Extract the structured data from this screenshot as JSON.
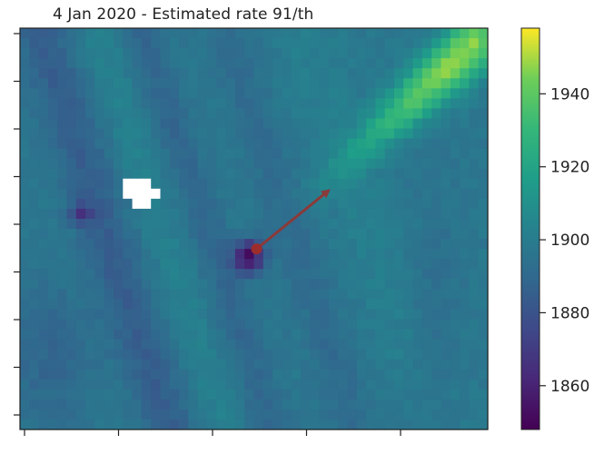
{
  "chart_data": {
    "type": "heatmap",
    "title": "4 Jan 2020 - Estimated rate 91/th",
    "xlabel": "",
    "ylabel": "",
    "colorbar": {
      "min": 1848,
      "max": 1958,
      "ticks": [
        1860,
        1880,
        1900,
        1920,
        1940
      ],
      "tick_labels": [
        "1860",
        "1880",
        "1900",
        "1920",
        "1940"
      ],
      "colormap": "viridis"
    },
    "x_ticks_count": 5,
    "y_ticks_count": 9,
    "tick_labels_shown": false,
    "grid": {
      "cols": 50,
      "rows": 40,
      "background_value": 1897,
      "plume": {
        "description_value_max": 1955,
        "direction": "from-source-to-upper-right"
      },
      "low_spot_value": 1852,
      "missing_region": "white"
    },
    "source_marker": {
      "color": "#9b2d2d"
    },
    "wind_arrow": {
      "color": "#8a3a3a"
    }
  }
}
